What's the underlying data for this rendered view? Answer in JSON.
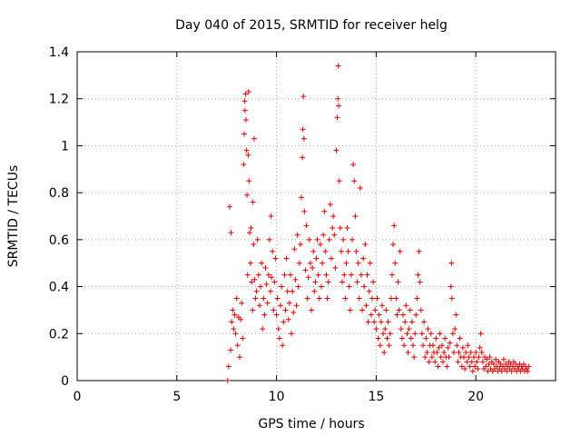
{
  "chart_data": {
    "type": "scatter",
    "title": "Day 040 of 2015, SRMTID for receiver helg",
    "xlabel": "GPS time / hours",
    "ylabel": "SRMTID / TECUs",
    "xlim": [
      0,
      24
    ],
    "ylim": [
      0,
      1.4
    ],
    "xticks": [
      0,
      5,
      10,
      15,
      20
    ],
    "yticks": [
      0,
      0.2,
      0.4,
      0.6,
      0.8,
      1,
      1.2,
      1.4
    ],
    "xtick_labels": [
      "0",
      "5",
      "10",
      "15",
      "20"
    ],
    "ytick_labels": [
      "0",
      "0.2",
      "0.4",
      "0.6",
      "0.8",
      "1",
      "1.2",
      "1.4"
    ],
    "grid": true,
    "marker": "+",
    "color": "#e00000",
    "series": [
      {
        "name": "SRMTID",
        "points": [
          [
            7.55,
            0.0
          ],
          [
            7.6,
            0.06
          ],
          [
            7.65,
            0.74
          ],
          [
            7.7,
            0.13
          ],
          [
            7.72,
            0.63
          ],
          [
            7.75,
            0.25
          ],
          [
            7.8,
            0.3
          ],
          [
            7.85,
            0.22
          ],
          [
            7.9,
            0.28
          ],
          [
            7.95,
            0.2
          ],
          [
            8.0,
            0.35
          ],
          [
            8.05,
            0.15
          ],
          [
            8.1,
            0.27
          ],
          [
            8.15,
            0.1
          ],
          [
            8.2,
            0.26
          ],
          [
            8.25,
            0.33
          ],
          [
            8.3,
            0.18
          ],
          [
            8.35,
            0.92
          ],
          [
            8.38,
            1.05
          ],
          [
            8.4,
            1.19
          ],
          [
            8.42,
            1.15
          ],
          [
            8.45,
            1.22
          ],
          [
            8.47,
            1.11
          ],
          [
            8.5,
            0.98
          ],
          [
            8.52,
            0.79
          ],
          [
            8.55,
            0.45
          ],
          [
            8.58,
            0.96
          ],
          [
            8.6,
            1.23
          ],
          [
            8.62,
            0.85
          ],
          [
            8.65,
            0.63
          ],
          [
            8.7,
            0.5
          ],
          [
            8.72,
            0.65
          ],
          [
            8.75,
            0.42
          ],
          [
            8.8,
            0.3
          ],
          [
            8.82,
            0.76
          ],
          [
            8.85,
            0.58
          ],
          [
            8.88,
            1.03
          ],
          [
            8.9,
            0.43
          ],
          [
            8.95,
            0.35
          ],
          [
            9.0,
            0.38
          ],
          [
            9.05,
            0.6
          ],
          [
            9.1,
            0.45
          ],
          [
            9.15,
            0.32
          ],
          [
            9.2,
            0.4
          ],
          [
            9.25,
            0.5
          ],
          [
            9.3,
            0.22
          ],
          [
            9.35,
            0.35
          ],
          [
            9.4,
            0.28
          ],
          [
            9.45,
            0.48
          ],
          [
            9.5,
            0.41
          ],
          [
            9.55,
            0.33
          ],
          [
            9.6,
            0.45
          ],
          [
            9.65,
            0.6
          ],
          [
            9.7,
            0.38
          ],
          [
            9.72,
            0.7
          ],
          [
            9.75,
            0.44
          ],
          [
            9.8,
            0.55
          ],
          [
            9.85,
            0.3
          ],
          [
            9.9,
            0.42
          ],
          [
            9.95,
            0.52
          ],
          [
            10.0,
            0.28
          ],
          [
            10.05,
            0.35
          ],
          [
            10.1,
            0.22
          ],
          [
            10.15,
            0.18
          ],
          [
            10.2,
            0.32
          ],
          [
            10.25,
            0.4
          ],
          [
            10.3,
            0.15
          ],
          [
            10.35,
            0.25
          ],
          [
            10.4,
            0.45
          ],
          [
            10.45,
            0.3
          ],
          [
            10.5,
            0.52
          ],
          [
            10.55,
            0.38
          ],
          [
            10.6,
            0.26
          ],
          [
            10.65,
            0.33
          ],
          [
            10.7,
            0.45
          ],
          [
            10.75,
            0.2
          ],
          [
            10.8,
            0.38
          ],
          [
            10.85,
            0.29
          ],
          [
            10.9,
            0.56
          ],
          [
            10.95,
            0.43
          ],
          [
            11.0,
            0.32
          ],
          [
            11.05,
            0.62
          ],
          [
            11.1,
            0.4
          ],
          [
            11.15,
            0.5
          ],
          [
            11.2,
            0.58
          ],
          [
            11.25,
            0.78
          ],
          [
            11.3,
            0.95
          ],
          [
            11.32,
            1.07
          ],
          [
            11.35,
            1.21
          ],
          [
            11.38,
            1.03
          ],
          [
            11.4,
            0.72
          ],
          [
            11.45,
            0.47
          ],
          [
            11.5,
            0.66
          ],
          [
            11.55,
            0.35
          ],
          [
            11.6,
            0.44
          ],
          [
            11.65,
            0.6
          ],
          [
            11.7,
            0.5
          ],
          [
            11.75,
            0.3
          ],
          [
            11.8,
            0.48
          ],
          [
            11.85,
            0.55
          ],
          [
            11.9,
            0.38
          ],
          [
            11.95,
            0.42
          ],
          [
            12.0,
            0.52
          ],
          [
            12.05,
            0.6
          ],
          [
            12.1,
            0.45
          ],
          [
            12.15,
            0.35
          ],
          [
            12.2,
            0.58
          ],
          [
            12.25,
            0.4
          ],
          [
            12.3,
            0.5
          ],
          [
            12.35,
            0.62
          ],
          [
            12.4,
            0.72
          ],
          [
            12.45,
            0.55
          ],
          [
            12.5,
            0.45
          ],
          [
            12.55,
            0.35
          ],
          [
            12.6,
            0.42
          ],
          [
            12.65,
            0.6
          ],
          [
            12.7,
            0.75
          ],
          [
            12.75,
            0.52
          ],
          [
            12.8,
            0.65
          ],
          [
            12.85,
            0.7
          ],
          [
            12.9,
            0.62
          ],
          [
            12.95,
            0.48
          ],
          [
            13.0,
            0.98
          ],
          [
            13.05,
            1.12
          ],
          [
            13.08,
            1.2
          ],
          [
            13.1,
            1.34
          ],
          [
            13.12,
            1.17
          ],
          [
            13.15,
            0.85
          ],
          [
            13.2,
            0.65
          ],
          [
            13.25,
            0.55
          ],
          [
            13.3,
            0.42
          ],
          [
            13.35,
            0.6
          ],
          [
            13.4,
            0.45
          ],
          [
            13.45,
            0.35
          ],
          [
            13.5,
            0.5
          ],
          [
            13.55,
            0.65
          ],
          [
            13.6,
            0.55
          ],
          [
            13.65,
            0.4
          ],
          [
            13.7,
            0.3
          ],
          [
            13.75,
            0.45
          ],
          [
            13.8,
            0.6
          ],
          [
            13.85,
            0.92
          ],
          [
            13.9,
            0.85
          ],
          [
            13.95,
            0.7
          ],
          [
            14.0,
            0.55
          ],
          [
            14.05,
            0.42
          ],
          [
            14.1,
            0.5
          ],
          [
            14.15,
            0.35
          ],
          [
            14.2,
            0.82
          ],
          [
            14.25,
            0.45
          ],
          [
            14.3,
            0.3
          ],
          [
            14.35,
            0.52
          ],
          [
            14.4,
            0.4
          ],
          [
            14.45,
            0.58
          ],
          [
            14.5,
            0.32
          ],
          [
            14.55,
            0.45
          ],
          [
            14.6,
            0.25
          ],
          [
            14.65,
            0.38
          ],
          [
            14.7,
            0.5
          ],
          [
            14.75,
            0.28
          ],
          [
            14.8,
            0.35
          ],
          [
            14.85,
            0.42
          ],
          [
            14.9,
            0.25
          ],
          [
            14.95,
            0.3
          ],
          [
            15.0,
            0.22
          ],
          [
            15.05,
            0.35
          ],
          [
            15.1,
            0.18
          ],
          [
            15.15,
            0.28
          ],
          [
            15.2,
            0.15
          ],
          [
            15.25,
            0.25
          ],
          [
            15.3,
            0.32
          ],
          [
            15.35,
            0.2
          ],
          [
            15.4,
            0.12
          ],
          [
            15.45,
            0.22
          ],
          [
            15.5,
            0.3
          ],
          [
            15.55,
            0.18
          ],
          [
            15.6,
            0.25
          ],
          [
            15.65,
            0.15
          ],
          [
            15.7,
            0.2
          ],
          [
            15.75,
            0.35
          ],
          [
            15.8,
            0.45
          ],
          [
            15.85,
            0.58
          ],
          [
            15.9,
            0.66
          ],
          [
            15.95,
            0.5
          ],
          [
            16.0,
            0.35
          ],
          [
            16.05,
            0.28
          ],
          [
            16.1,
            0.42
          ],
          [
            16.15,
            0.3
          ],
          [
            16.2,
            0.55
          ],
          [
            16.25,
            0.22
          ],
          [
            16.3,
            0.18
          ],
          [
            16.35,
            0.28
          ],
          [
            16.4,
            0.15
          ],
          [
            16.45,
            0.25
          ],
          [
            16.5,
            0.32
          ],
          [
            16.55,
            0.2
          ],
          [
            16.6,
            0.12
          ],
          [
            16.65,
            0.22
          ],
          [
            16.7,
            0.3
          ],
          [
            16.75,
            0.18
          ],
          [
            16.8,
            0.25
          ],
          [
            16.85,
            0.15
          ],
          [
            16.9,
            0.1
          ],
          [
            16.95,
            0.2
          ],
          [
            17.0,
            0.28
          ],
          [
            17.05,
            0.35
          ],
          [
            17.1,
            0.45
          ],
          [
            17.15,
            0.55
          ],
          [
            17.2,
            0.42
          ],
          [
            17.25,
            0.3
          ],
          [
            17.3,
            0.2
          ],
          [
            17.35,
            0.15
          ],
          [
            17.4,
            0.25
          ],
          [
            17.45,
            0.1
          ],
          [
            17.5,
            0.18
          ],
          [
            17.55,
            0.12
          ],
          [
            17.6,
            0.22
          ],
          [
            17.65,
            0.08
          ],
          [
            17.7,
            0.15
          ],
          [
            17.75,
            0.2
          ],
          [
            17.8,
            0.1
          ],
          [
            17.85,
            0.15
          ],
          [
            17.9,
            0.12
          ],
          [
            17.95,
            0.08
          ],
          [
            18.0,
            0.18
          ],
          [
            18.05,
            0.12
          ],
          [
            18.1,
            0.06
          ],
          [
            18.15,
            0.14
          ],
          [
            18.2,
            0.2
          ],
          [
            18.25,
            0.1
          ],
          [
            18.3,
            0.15
          ],
          [
            18.35,
            0.08
          ],
          [
            18.4,
            0.12
          ],
          [
            18.45,
            0.18
          ],
          [
            18.5,
            0.1
          ],
          [
            18.55,
            0.06
          ],
          [
            18.6,
            0.14
          ],
          [
            18.65,
            0.1
          ],
          [
            18.7,
            0.16
          ],
          [
            18.75,
            0.4
          ],
          [
            18.78,
            0.5
          ],
          [
            18.8,
            0.35
          ],
          [
            18.85,
            0.2
          ],
          [
            18.9,
            0.12
          ],
          [
            18.95,
            0.22
          ],
          [
            19.0,
            0.28
          ],
          [
            19.05,
            0.15
          ],
          [
            19.1,
            0.08
          ],
          [
            19.15,
            0.12
          ],
          [
            19.2,
            0.18
          ],
          [
            19.25,
            0.1
          ],
          [
            19.3,
            0.06
          ],
          [
            19.35,
            0.14
          ],
          [
            19.4,
            0.1
          ],
          [
            19.45,
            0.05
          ],
          [
            19.5,
            0.12
          ],
          [
            19.55,
            0.08
          ],
          [
            19.6,
            0.15
          ],
          [
            19.65,
            0.1
          ],
          [
            19.7,
            0.06
          ],
          [
            19.75,
            0.12
          ],
          [
            19.8,
            0.08
          ],
          [
            19.85,
            0.04
          ],
          [
            19.9,
            0.1
          ],
          [
            19.95,
            0.06
          ],
          [
            20.0,
            0.12
          ],
          [
            20.05,
            0.08
          ],
          [
            20.1,
            0.05
          ],
          [
            20.15,
            0.1
          ],
          [
            20.2,
            0.14
          ],
          [
            20.25,
            0.2
          ],
          [
            20.3,
            0.12
          ],
          [
            20.35,
            0.08
          ],
          [
            20.4,
            0.05
          ],
          [
            20.45,
            0.1
          ],
          [
            20.5,
            0.06
          ],
          [
            20.55,
            0.09
          ],
          [
            20.6,
            0.04
          ],
          [
            20.65,
            0.07
          ],
          [
            20.7,
            0.1
          ],
          [
            20.75,
            0.05
          ],
          [
            20.8,
            0.08
          ],
          [
            20.85,
            0.04
          ],
          [
            20.9,
            0.07
          ],
          [
            20.95,
            0.05
          ],
          [
            21.0,
            0.09
          ],
          [
            21.05,
            0.06
          ],
          [
            21.1,
            0.04
          ],
          [
            21.15,
            0.08
          ],
          [
            21.2,
            0.05
          ],
          [
            21.25,
            0.07
          ],
          [
            21.3,
            0.04
          ],
          [
            21.35,
            0.06
          ],
          [
            21.4,
            0.09
          ],
          [
            21.45,
            0.05
          ],
          [
            21.5,
            0.07
          ],
          [
            21.55,
            0.04
          ],
          [
            21.6,
            0.06
          ],
          [
            21.65,
            0.08
          ],
          [
            21.7,
            0.05
          ],
          [
            21.75,
            0.07
          ],
          [
            21.8,
            0.04
          ],
          [
            21.85,
            0.06
          ],
          [
            21.9,
            0.08
          ],
          [
            21.95,
            0.05
          ],
          [
            22.0,
            0.07
          ],
          [
            22.05,
            0.04
          ],
          [
            22.1,
            0.06
          ],
          [
            22.15,
            0.05
          ],
          [
            22.2,
            0.07
          ],
          [
            22.25,
            0.04
          ],
          [
            22.3,
            0.06
          ],
          [
            22.35,
            0.05
          ],
          [
            22.4,
            0.07
          ],
          [
            22.45,
            0.04
          ],
          [
            22.5,
            0.06
          ],
          [
            22.55,
            0.05
          ],
          [
            22.6,
            0.04
          ],
          [
            22.65,
            0.06
          ]
        ]
      }
    ]
  }
}
